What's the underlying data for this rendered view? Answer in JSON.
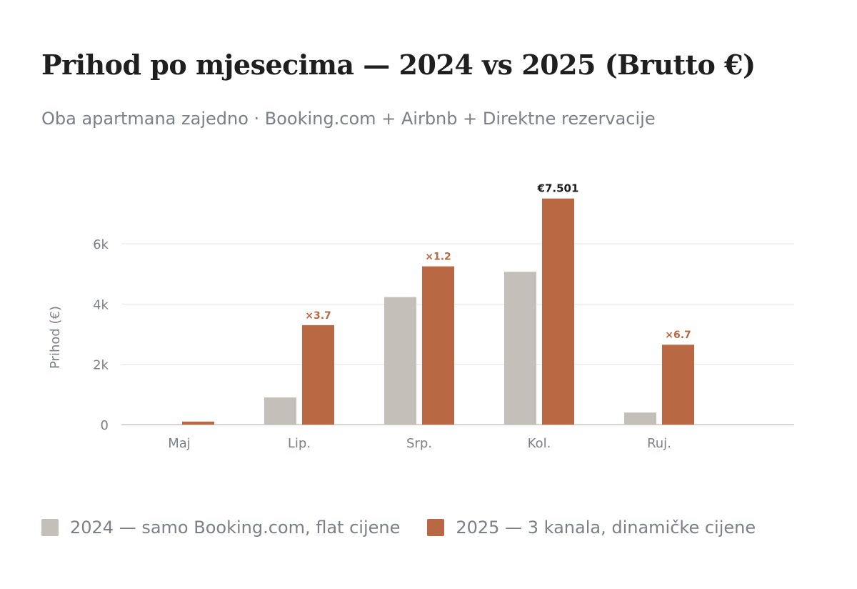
{
  "title": "Prihod po mjesecima — 2024 vs 2025 (Brutto €)",
  "subtitle": "Oba apartmana zajedno · Booking.com + Airbnb + Direktne rezervacije",
  "colors": {
    "s2024": "#c5bfb9",
    "s2025": "#b86944",
    "grid": "#e6e3df",
    "axis_text": "#7b8088"
  },
  "legend": [
    {
      "label": "2024 — samo Booking.com, flat cijene",
      "color": "#c5bfb9"
    },
    {
      "label": "2025 — 3 kanala, dinamičke cijene",
      "color": "#b86944"
    }
  ],
  "chart_data": {
    "type": "bar",
    "title": "Prihod po mjesecima — 2024 vs 2025 (Brutto €)",
    "subtitle": "Oba apartmana zajedno · Booking.com + Airbnb + Direktne rezervacije",
    "xlabel": "",
    "ylabel": "Prihod (€)",
    "categories": [
      "Maj",
      "Lip.",
      "Srp.",
      "Kol.",
      "Ruj."
    ],
    "ylim": [
      0,
      7501
    ],
    "yticks": [
      0,
      2000,
      4000,
      6000
    ],
    "ytick_labels": [
      "0",
      "2k",
      "4k",
      "6k"
    ],
    "grid": true,
    "legend_position": "bottom",
    "series": [
      {
        "name": "2024 — samo Booking.com, flat cijene",
        "values": [
          0,
          900,
          4230,
          5070,
          400
        ]
      },
      {
        "name": "2025 — 3 kanala, dinamičke cijene",
        "values": [
          100,
          3300,
          5250,
          7501,
          2650
        ]
      }
    ],
    "annotations": [
      "",
      "×3.7",
      "×1.2",
      "€7.501",
      "×6.7"
    ]
  }
}
